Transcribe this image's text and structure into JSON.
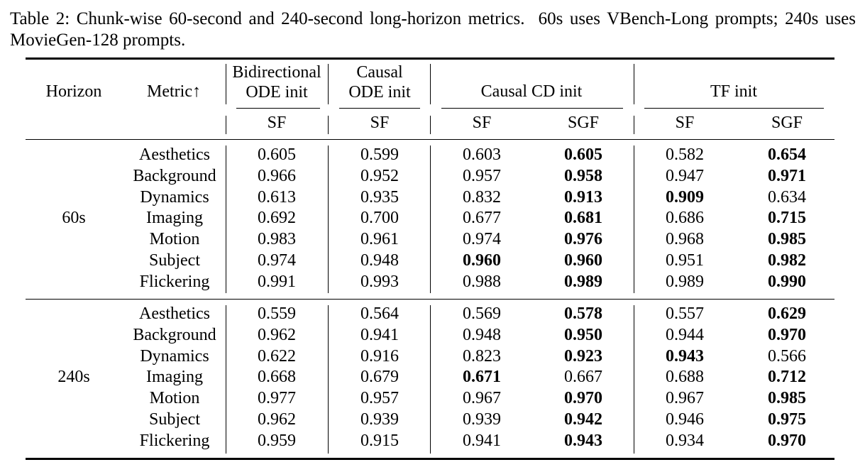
{
  "caption": {
    "label": "Table 2:",
    "text": "Chunk-wise 60-second and 240-second long-horizon metrics.  60s uses VBench-Long prompts; 240s uses MovieGen-128 prompts."
  },
  "table": {
    "headers": {
      "horizon": "Horizon",
      "metric": "Metric↑",
      "groups": [
        {
          "line1": "Bidirectional",
          "line2": "ODE init",
          "subs": [
            "SF"
          ]
        },
        {
          "line1": "Causal",
          "line2": "ODE init",
          "subs": [
            "SF"
          ]
        },
        {
          "line1": "Causal CD init",
          "line2": "",
          "subs": [
            "SF",
            "SGF"
          ]
        },
        {
          "line1": "TF init",
          "line2": "",
          "subs": [
            "SF",
            "SGF"
          ]
        }
      ]
    },
    "blocks": [
      {
        "horizon": "60s",
        "rows": [
          {
            "metric": "Aesthetics",
            "values": [
              "0.605",
              "0.599",
              "0.603",
              "0.605",
              "0.582",
              "0.654"
            ],
            "bold": [
              false,
              false,
              false,
              true,
              false,
              true
            ]
          },
          {
            "metric": "Background",
            "values": [
              "0.966",
              "0.952",
              "0.957",
              "0.958",
              "0.947",
              "0.971"
            ],
            "bold": [
              false,
              false,
              false,
              true,
              false,
              true
            ]
          },
          {
            "metric": "Dynamics",
            "values": [
              "0.613",
              "0.935",
              "0.832",
              "0.913",
              "0.909",
              "0.634"
            ],
            "bold": [
              false,
              false,
              false,
              true,
              true,
              false
            ]
          },
          {
            "metric": "Imaging",
            "values": [
              "0.692",
              "0.700",
              "0.677",
              "0.681",
              "0.686",
              "0.715"
            ],
            "bold": [
              false,
              false,
              false,
              true,
              false,
              true
            ]
          },
          {
            "metric": "Motion",
            "values": [
              "0.983",
              "0.961",
              "0.974",
              "0.976",
              "0.968",
              "0.985"
            ],
            "bold": [
              false,
              false,
              false,
              true,
              false,
              true
            ]
          },
          {
            "metric": "Subject",
            "values": [
              "0.974",
              "0.948",
              "0.960",
              "0.960",
              "0.951",
              "0.982"
            ],
            "bold": [
              false,
              false,
              true,
              true,
              false,
              true
            ]
          },
          {
            "metric": "Flickering",
            "values": [
              "0.991",
              "0.993",
              "0.988",
              "0.989",
              "0.989",
              "0.990"
            ],
            "bold": [
              false,
              false,
              false,
              true,
              false,
              true
            ]
          }
        ]
      },
      {
        "horizon": "240s",
        "rows": [
          {
            "metric": "Aesthetics",
            "values": [
              "0.559",
              "0.564",
              "0.569",
              "0.578",
              "0.557",
              "0.629"
            ],
            "bold": [
              false,
              false,
              false,
              true,
              false,
              true
            ]
          },
          {
            "metric": "Background",
            "values": [
              "0.962",
              "0.941",
              "0.948",
              "0.950",
              "0.944",
              "0.970"
            ],
            "bold": [
              false,
              false,
              false,
              true,
              false,
              true
            ]
          },
          {
            "metric": "Dynamics",
            "values": [
              "0.622",
              "0.916",
              "0.823",
              "0.923",
              "0.943",
              "0.566"
            ],
            "bold": [
              false,
              false,
              false,
              true,
              true,
              false
            ]
          },
          {
            "metric": "Imaging",
            "values": [
              "0.668",
              "0.679",
              "0.671",
              "0.667",
              "0.688",
              "0.712"
            ],
            "bold": [
              false,
              false,
              true,
              false,
              false,
              true
            ]
          },
          {
            "metric": "Motion",
            "values": [
              "0.977",
              "0.957",
              "0.967",
              "0.970",
              "0.967",
              "0.985"
            ],
            "bold": [
              false,
              false,
              false,
              true,
              false,
              true
            ]
          },
          {
            "metric": "Subject",
            "values": [
              "0.962",
              "0.939",
              "0.939",
              "0.942",
              "0.946",
              "0.975"
            ],
            "bold": [
              false,
              false,
              false,
              true,
              false,
              true
            ]
          },
          {
            "metric": "Flickering",
            "values": [
              "0.959",
              "0.915",
              "0.941",
              "0.943",
              "0.934",
              "0.970"
            ],
            "bold": [
              false,
              false,
              false,
              true,
              false,
              true
            ]
          }
        ]
      }
    ]
  }
}
